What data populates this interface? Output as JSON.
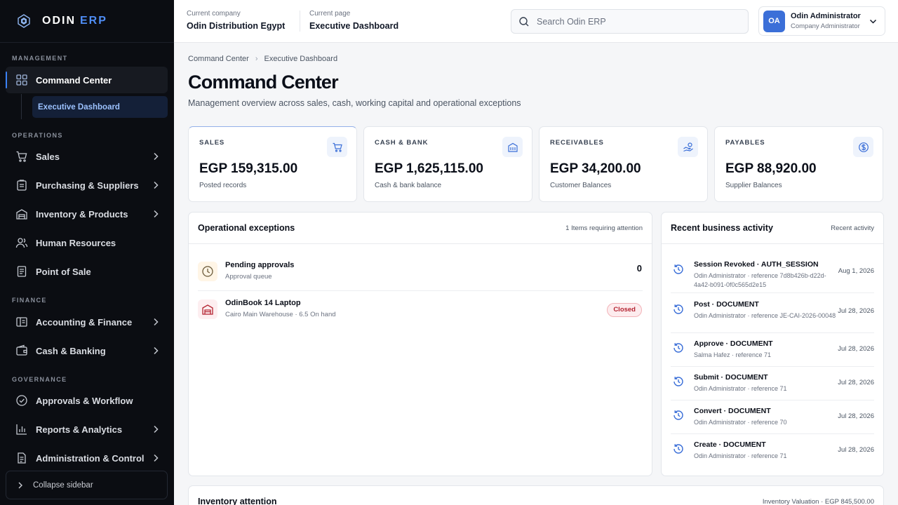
{
  "brand": {
    "name": "ODIN",
    "suffix": "ERP"
  },
  "sidebar": {
    "sections": {
      "management": "MANAGEMENT",
      "operations": "OPERATIONS",
      "finance": "FINANCE",
      "governance": "GOVERNANCE"
    },
    "items": [
      {
        "label": "Command Center",
        "icon": "grid-icon",
        "active": true
      },
      {
        "label": "Sales",
        "icon": "cart-icon"
      },
      {
        "label": "Purchasing & Suppliers",
        "icon": "clipboard-icon"
      },
      {
        "label": "Inventory & Products",
        "icon": "warehouse-icon"
      },
      {
        "label": "Human Resources",
        "icon": "people-icon"
      },
      {
        "label": "Point of Sale",
        "icon": "receipt-icon"
      },
      {
        "label": "Accounting & Finance",
        "icon": "ledger-icon"
      },
      {
        "label": "Cash & Banking",
        "icon": "wallet-icon"
      },
      {
        "label": "Approvals & Workflow",
        "icon": "check-circle-icon"
      },
      {
        "label": "Reports & Analytics",
        "icon": "bar-chart-icon"
      },
      {
        "label": "Administration & Control",
        "icon": "document-icon"
      }
    ],
    "sub_item": "Executive Dashboard",
    "collapse_label": "Collapse sidebar"
  },
  "topbar": {
    "company_label": "Current company",
    "company_value": "Odin Distribution Egypt",
    "page_label": "Current page",
    "page_value": "Executive Dashboard",
    "search_placeholder": "Search Odin ERP",
    "user": {
      "initials": "OA",
      "name": "Odin Administrator",
      "role": "Company Administrator"
    }
  },
  "breadcrumb": [
    "Command Center",
    "Executive Dashboard"
  ],
  "page": {
    "title": "Command Center",
    "subtitle": "Management overview across sales, cash, working capital and operational exceptions"
  },
  "kpis": [
    {
      "label": "SALES",
      "value": "EGP 159,315.00",
      "caption": "Posted records",
      "icon": "cart-icon"
    },
    {
      "label": "CASH & BANK",
      "value": "EGP 1,625,115.00",
      "caption": "Cash & bank balance",
      "icon": "bank-icon"
    },
    {
      "label": "RECEIVABLES",
      "value": "EGP 34,200.00",
      "caption": "Customer Balances",
      "icon": "hand-coins-icon"
    },
    {
      "label": "PAYABLES",
      "value": "EGP 88,920.00",
      "caption": "Supplier Balances",
      "icon": "dollar-circle-icon"
    }
  ],
  "exceptions": {
    "title": "Operational exceptions",
    "meta": "1 Items requiring attention",
    "rows": [
      {
        "title": "Pending approvals",
        "subtitle": "Approval queue",
        "count": "0",
        "icon": "clock-icon"
      },
      {
        "title": "OdinBook 14 Laptop",
        "subtitle": "Cairo Main Warehouse · 6.5 On hand",
        "badge": "Closed",
        "icon": "warehouse-icon"
      }
    ]
  },
  "activity": {
    "title": "Recent business activity",
    "meta": "Recent activity",
    "rows": [
      {
        "title": "Session Revoked · AUTH_SESSION",
        "subtitle": "Odin Administrator · reference 7d8b426b-d22d-4a42-b091-0f0c565d2e15",
        "date": "Aug 1, 2026"
      },
      {
        "title": "Post · DOCUMENT",
        "subtitle": "Odin Administrator · reference JE-CAI-2026-00048",
        "date": "Jul 28, 2026"
      },
      {
        "title": "Approve · DOCUMENT",
        "subtitle": "Salma Hafez · reference 71",
        "date": "Jul 28, 2026"
      },
      {
        "title": "Submit · DOCUMENT",
        "subtitle": "Odin Administrator · reference 71",
        "date": "Jul 28, 2026"
      },
      {
        "title": "Convert · DOCUMENT",
        "subtitle": "Odin Administrator · reference 70",
        "date": "Jul 28, 2026"
      },
      {
        "title": "Create · DOCUMENT",
        "subtitle": "Odin Administrator · reference 71",
        "date": "Jul 28, 2026"
      }
    ]
  },
  "inventory": {
    "title": "Inventory attention",
    "meta": "Inventory Valuation · EGP 845,500.00"
  },
  "colors": {
    "accent": "#3b82f6",
    "sidebar_bg": "#0b0d12",
    "badge_closed": "#b42331"
  }
}
